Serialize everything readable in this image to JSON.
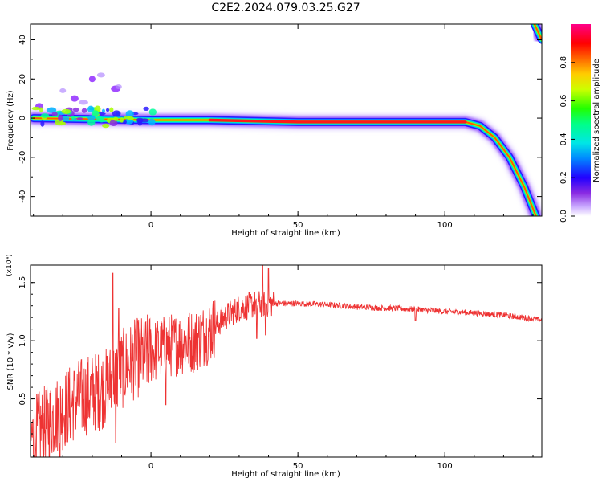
{
  "title": "C2E2.2024.079.03.25.G27",
  "colorbar": {
    "label": "Normalized spectral amplitude",
    "ticks": [
      "0.0",
      "0.2",
      "0.4",
      "0.6",
      "0.8"
    ],
    "range": [
      0,
      1
    ]
  },
  "colors": {
    "snr_line": "#ee3333",
    "background": "#ffffff",
    "signal_peak": "#ff1a1a"
  },
  "chart_data": [
    {
      "type": "heatmap",
      "xlabel": "Height of straight line (km)",
      "ylabel": "Frequency (Hz)",
      "xlim": [
        -41,
        133
      ],
      "ylim": [
        -50,
        48
      ],
      "x_ticks": [
        "0",
        "50",
        "100"
      ],
      "y_ticks": [
        "40",
        "20",
        "0",
        "-20",
        "-40"
      ],
      "ridge": {
        "description_points": [
          {
            "x": -40,
            "y": 0
          },
          {
            "x": 0,
            "y": -1
          },
          {
            "x": 20,
            "y": -1
          },
          {
            "x": 50,
            "y": -2
          },
          {
            "x": 80,
            "y": -2
          },
          {
            "x": 107,
            "y": -2
          },
          {
            "x": 112,
            "y": -4
          },
          {
            "x": 117,
            "y": -10
          },
          {
            "x": 122,
            "y": -20
          },
          {
            "x": 127,
            "y": -35
          },
          {
            "x": 131,
            "y": -50
          }
        ],
        "upper_branch": [
          {
            "x": 130.5,
            "y": 48
          },
          {
            "x": 133,
            "y": 40
          }
        ]
      },
      "noise_blobs": [
        {
          "x": -30,
          "y": 14
        },
        {
          "x": -26,
          "y": 10
        },
        {
          "x": -23,
          "y": 8
        },
        {
          "x": -20,
          "y": 20
        },
        {
          "x": -17,
          "y": 22
        },
        {
          "x": -12,
          "y": 15
        },
        {
          "x": -11,
          "y": 16
        },
        {
          "x": -38,
          "y": 6
        },
        {
          "x": -34,
          "y": 4
        }
      ]
    },
    {
      "type": "line",
      "xlabel": "Height of straight line (km)",
      "ylabel": "SNR (10 * v/v)",
      "y_multiplier": "(x10⁴)",
      "xlim": [
        -41,
        133
      ],
      "ylim": [
        0,
        1.65
      ],
      "x_ticks": [
        "0",
        "50",
        "100"
      ],
      "y_ticks": [
        "0.5",
        "1.0",
        "1.5"
      ],
      "series": [
        {
          "color": "#ee3333",
          "trend": [
            {
              "x": -41,
              "y": 0.15
            },
            {
              "x": -35,
              "y": 0.3
            },
            {
              "x": -30,
              "y": 0.4
            },
            {
              "x": -25,
              "y": 0.5
            },
            {
              "x": -20,
              "y": 0.55
            },
            {
              "x": -15,
              "y": 0.6
            },
            {
              "x": -10,
              "y": 0.75
            },
            {
              "x": -5,
              "y": 0.85
            },
            {
              "x": 0,
              "y": 0.9
            },
            {
              "x": 5,
              "y": 0.95
            },
            {
              "x": 10,
              "y": 0.98
            },
            {
              "x": 15,
              "y": 1.0
            },
            {
              "x": 20,
              "y": 1.08
            },
            {
              "x": 25,
              "y": 1.2
            },
            {
              "x": 30,
              "y": 1.28
            },
            {
              "x": 35,
              "y": 1.31
            },
            {
              "x": 40,
              "y": 1.32
            },
            {
              "x": 45,
              "y": 1.32
            },
            {
              "x": 50,
              "y": 1.32
            },
            {
              "x": 60,
              "y": 1.31
            },
            {
              "x": 70,
              "y": 1.29
            },
            {
              "x": 80,
              "y": 1.28
            },
            {
              "x": 90,
              "y": 1.27
            },
            {
              "x": 100,
              "y": 1.25
            },
            {
              "x": 110,
              "y": 1.24
            },
            {
              "x": 120,
              "y": 1.22
            },
            {
              "x": 133,
              "y": 1.18
            }
          ],
          "spikes": [
            {
              "x": -13,
              "y": 1.58
            },
            {
              "x": -11,
              "y": 1.28
            },
            {
              "x": 38,
              "y": 1.65
            },
            {
              "x": 40,
              "y": 1.62
            },
            {
              "x": 36,
              "y": 1.02
            },
            {
              "x": 39,
              "y": 1.05
            },
            {
              "x": -31,
              "y": 0.0
            },
            {
              "x": -12,
              "y": 0.12
            },
            {
              "x": 5,
              "y": 0.45
            },
            {
              "x": 90,
              "y": 1.17
            }
          ]
        }
      ]
    }
  ]
}
